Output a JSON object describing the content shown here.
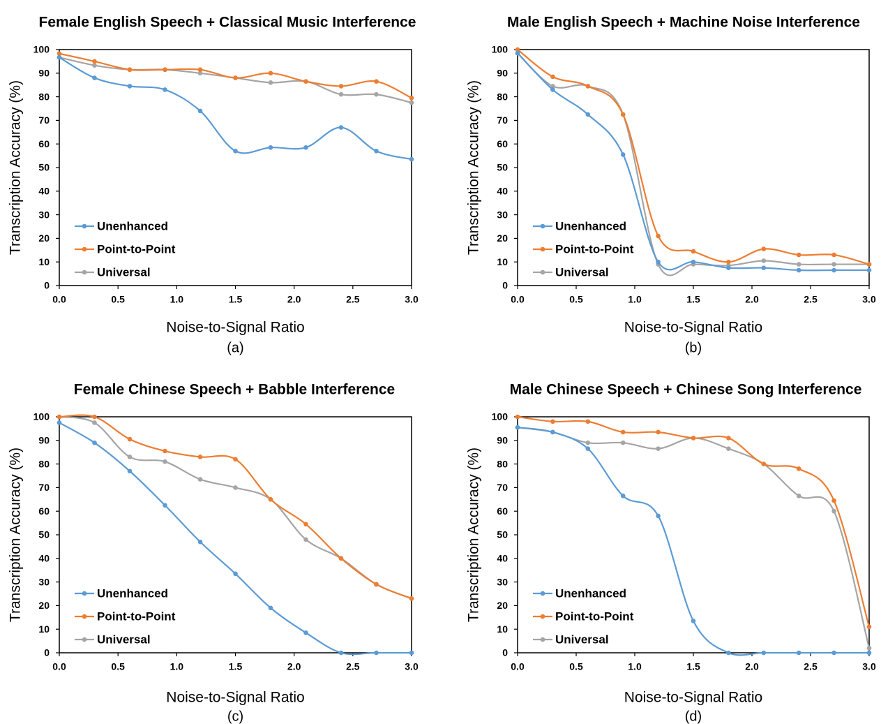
{
  "chart_data": [
    {
      "type": "line",
      "panel_label": "(a)",
      "title": "Female English Speech + Classical Music Interference",
      "xlabel": "Noise-to-Signal Ratio",
      "ylabel": "Transcription Accuracy (%)",
      "xlim": [
        0,
        3
      ],
      "ylim": [
        0,
        100
      ],
      "xticks": [
        "0.0",
        "0.5",
        "1.0",
        "1.5",
        "2.0",
        "2.5",
        "3.0"
      ],
      "yticks": [
        "0",
        "10",
        "20",
        "30",
        "40",
        "50",
        "60",
        "70",
        "80",
        "90",
        "100"
      ],
      "grid": false,
      "legend_position": "bottom-left",
      "x": [
        0.0,
        0.3,
        0.6,
        0.9,
        1.2,
        1.5,
        1.8,
        2.1,
        2.4,
        2.7,
        3.0
      ],
      "series": [
        {
          "name": "Unenhanced",
          "color": "#5B9BD5",
          "values": [
            96.7,
            88,
            84.5,
            83,
            74,
            57,
            58.5,
            58.5,
            67,
            57,
            53.5
          ]
        },
        {
          "name": "Point-to-Point",
          "color": "#ED7D31",
          "values": [
            98.3,
            95,
            91.5,
            91.5,
            91.5,
            88,
            90,
            86.5,
            84.5,
            86.5,
            79.5
          ]
        },
        {
          "name": "Universal",
          "color": "#A5A5A5",
          "values": [
            96.7,
            93.3,
            91.5,
            91.5,
            90,
            88,
            86,
            86.5,
            81,
            81,
            77.5
          ]
        }
      ]
    },
    {
      "type": "line",
      "panel_label": "(b)",
      "title": "Male English Speech + Machine Noise Interference",
      "xlabel": "Noise-to-Signal Ratio",
      "ylabel": "Transcription Accuracy (%)",
      "xlim": [
        0,
        3
      ],
      "ylim": [
        0,
        100
      ],
      "xticks": [
        "0.0",
        "0.5",
        "1.0",
        "1.5",
        "2.0",
        "2.5",
        "3.0"
      ],
      "yticks": [
        "0",
        "10",
        "20",
        "30",
        "40",
        "50",
        "60",
        "70",
        "80",
        "90",
        "100"
      ],
      "grid": false,
      "legend_position": "bottom-left",
      "x": [
        0.0,
        0.3,
        0.6,
        0.9,
        1.2,
        1.5,
        1.8,
        2.1,
        2.4,
        2.7,
        3.0
      ],
      "series": [
        {
          "name": "Unenhanced",
          "color": "#5B9BD5",
          "values": [
            98.5,
            83,
            72.5,
            55.5,
            10,
            10,
            7.5,
            7.5,
            6.5,
            6.5,
            6.5
          ]
        },
        {
          "name": "Point-to-Point",
          "color": "#ED7D31",
          "values": [
            100,
            88.5,
            84.5,
            72.5,
            21,
            14.5,
            10,
            15.5,
            13,
            13,
            9
          ]
        },
        {
          "name": "Universal",
          "color": "#A5A5A5",
          "values": [
            98.5,
            84.5,
            84.5,
            72.5,
            9,
            9,
            8.5,
            10.5,
            9,
            9,
            9
          ]
        }
      ]
    },
    {
      "type": "line",
      "panel_label": "(c)",
      "title": "Female Chinese Speech + Babble Interference",
      "xlabel": "Noise-to-Signal Ratio",
      "ylabel": "Transcription Accuracy (%)",
      "xlim": [
        0,
        3
      ],
      "ylim": [
        0,
        100
      ],
      "xticks": [
        "0.0",
        "0.5",
        "1.0",
        "1.5",
        "2.0",
        "2.5",
        "3.0"
      ],
      "yticks": [
        "0",
        "10",
        "20",
        "30",
        "40",
        "50",
        "60",
        "70",
        "80",
        "90",
        "100"
      ],
      "grid": false,
      "legend_position": "bottom-left",
      "x": [
        0.0,
        0.3,
        0.6,
        0.9,
        1.2,
        1.5,
        1.8,
        2.1,
        2.4,
        2.7,
        3.0
      ],
      "series": [
        {
          "name": "Unenhanced",
          "color": "#5B9BD5",
          "values": [
            97.5,
            89,
            77,
            62.5,
            47,
            33.5,
            19,
            8.5,
            0,
            0,
            0
          ]
        },
        {
          "name": "Point-to-Point",
          "color": "#ED7D31",
          "values": [
            100,
            100,
            90.5,
            85.5,
            83,
            82,
            65,
            54.5,
            40,
            29,
            23
          ]
        },
        {
          "name": "Universal",
          "color": "#A5A5A5",
          "values": [
            100,
            97.5,
            83,
            81,
            73.5,
            70,
            65,
            48,
            40,
            29,
            23
          ]
        }
      ]
    },
    {
      "type": "line",
      "panel_label": "(d)",
      "title": "Male Chinese Speech + Chinese Song Interference",
      "xlabel": "Noise-to-Signal Ratio",
      "ylabel": "Transcription Accuracy (%)",
      "xlim": [
        0,
        3
      ],
      "ylim": [
        0,
        100
      ],
      "xticks": [
        "0.0",
        "0.5",
        "1.0",
        "1.5",
        "2.0",
        "2.5",
        "3.0"
      ],
      "yticks": [
        "0",
        "10",
        "20",
        "30",
        "40",
        "50",
        "60",
        "70",
        "80",
        "90",
        "100"
      ],
      "grid": false,
      "legend_position": "bottom-left",
      "x": [
        0.0,
        0.3,
        0.6,
        0.9,
        1.2,
        1.5,
        1.8,
        2.1,
        2.4,
        2.7,
        3.0
      ],
      "series": [
        {
          "name": "Unenhanced",
          "color": "#5B9BD5",
          "values": [
            95.5,
            93.5,
            86.5,
            66.5,
            58,
            13.5,
            0,
            0,
            0,
            0,
            0
          ]
        },
        {
          "name": "Point-to-Point",
          "color": "#ED7D31",
          "values": [
            100,
            98,
            98,
            93.5,
            93.5,
            91,
            91,
            80,
            78,
            64.5,
            11
          ]
        },
        {
          "name": "Universal",
          "color": "#A5A5A5",
          "values": [
            95.5,
            93.5,
            89,
            89,
            86.5,
            91,
            86.5,
            80,
            66.5,
            60,
            2
          ]
        }
      ]
    }
  ]
}
